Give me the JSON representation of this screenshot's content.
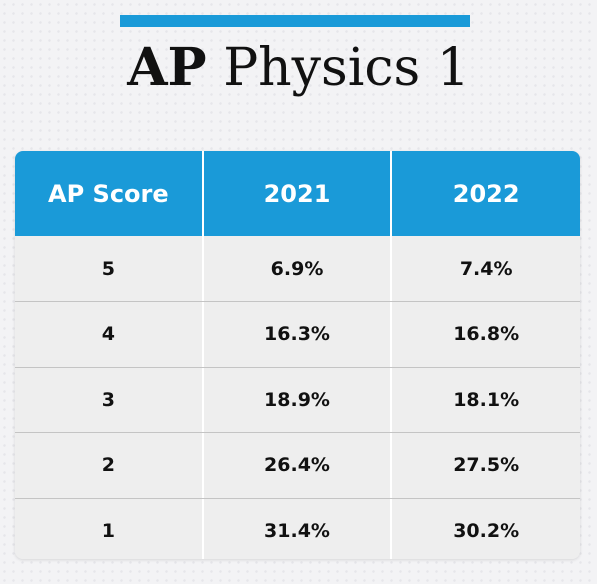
{
  "colors": {
    "accent": "#1a9ad8",
    "row_background": "#eeeeee",
    "divider": "#c4c4c4"
  },
  "title_bold": "AP",
  "title_rest": "Physics 1",
  "chart_data": {
    "type": "table",
    "title": "AP Physics 1",
    "columns": [
      "AP Score",
      "2021",
      "2022"
    ],
    "rows": [
      [
        "5",
        "6.9%",
        "7.4%"
      ],
      [
        "4",
        "16.3%",
        "16.8%"
      ],
      [
        "3",
        "18.9%",
        "18.1%"
      ],
      [
        "2",
        "26.4%",
        "27.5%"
      ],
      [
        "1",
        "31.4%",
        "30.2%"
      ]
    ]
  }
}
